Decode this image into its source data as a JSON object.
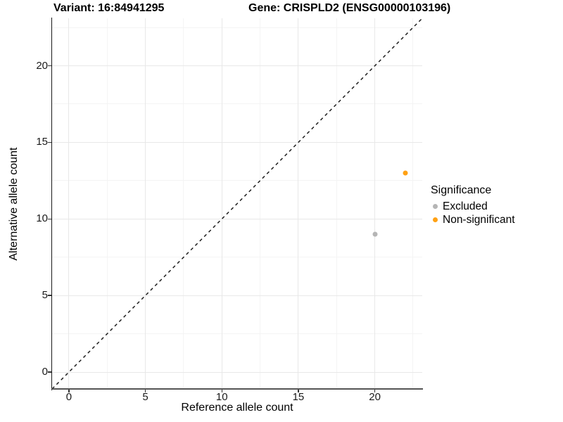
{
  "header": {
    "variant_label": "Variant: 16:84941295",
    "gene_label": "Gene: CRISPLD2 (ENSG00000103196)"
  },
  "legend": {
    "title": "Significance",
    "items": [
      {
        "label": "Excluded",
        "color": "#b5b5b5"
      },
      {
        "label": "Non-significant",
        "color": "#ffa114"
      }
    ]
  },
  "chart_data": {
    "type": "scatter",
    "title": "Variant: 16:84941295    Gene: CRISPLD2 (ENSG00000103196)",
    "xlabel": "Reference allele count",
    "ylabel": "Alternative allele count",
    "xlim": [
      -1.1,
      23.1
    ],
    "ylim": [
      -1.1,
      23.1
    ],
    "x_major_ticks": [
      0,
      5,
      10,
      15,
      20
    ],
    "y_major_ticks": [
      0,
      5,
      10,
      15,
      20
    ],
    "x_minor_ticks": [
      2.5,
      7.5,
      12.5,
      17.5,
      22.5
    ],
    "y_minor_ticks": [
      2.5,
      7.5,
      12.5,
      17.5,
      22.5
    ],
    "grid": true,
    "legend_position": "right",
    "reference_line": {
      "kind": "identity-diagonal",
      "style": "dashed",
      "color": "#1f1f1f",
      "from": [
        -1.1,
        -1.1
      ],
      "to": [
        23.1,
        23.1
      ]
    },
    "series": [
      {
        "name": "Excluded",
        "color": "#b5b5b5",
        "points": [
          {
            "x": 20,
            "y": 9
          }
        ]
      },
      {
        "name": "Non-significant",
        "color": "#ffa114",
        "points": [
          {
            "x": 22,
            "y": 13
          }
        ]
      }
    ]
  }
}
